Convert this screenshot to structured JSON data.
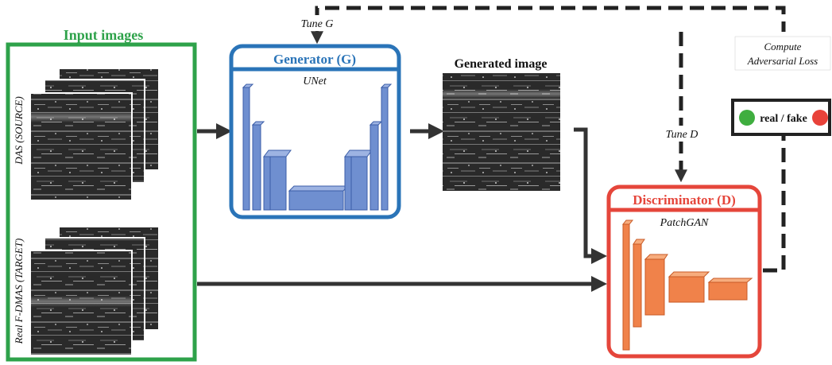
{
  "input_panel": {
    "title": "Input images",
    "source_label": "DAS (SOURCE)",
    "target_label": "Real F-DMAS (TARGET)"
  },
  "generator": {
    "title": "Generator (G)",
    "subtitle": "UNet"
  },
  "generated": {
    "title": "Generated image"
  },
  "discriminator": {
    "title": "Discriminator (D)",
    "subtitle": "PatchGAN"
  },
  "annotations": {
    "tune_g": "Tune G",
    "tune_d": "Tune D",
    "loss_line1": "Compute",
    "loss_line2": "Adversarial Loss",
    "real_fake": "real / fake"
  },
  "colors": {
    "input_border": "#2ea24a",
    "generator_border": "#2a74b8",
    "discriminator_border": "#e5463b",
    "unet_block": "#6f8fd0",
    "patchgan_block": "#f0824a",
    "real_dot": "#3fae3f",
    "fake_dot": "#e8423a",
    "arrow": "#333333"
  }
}
